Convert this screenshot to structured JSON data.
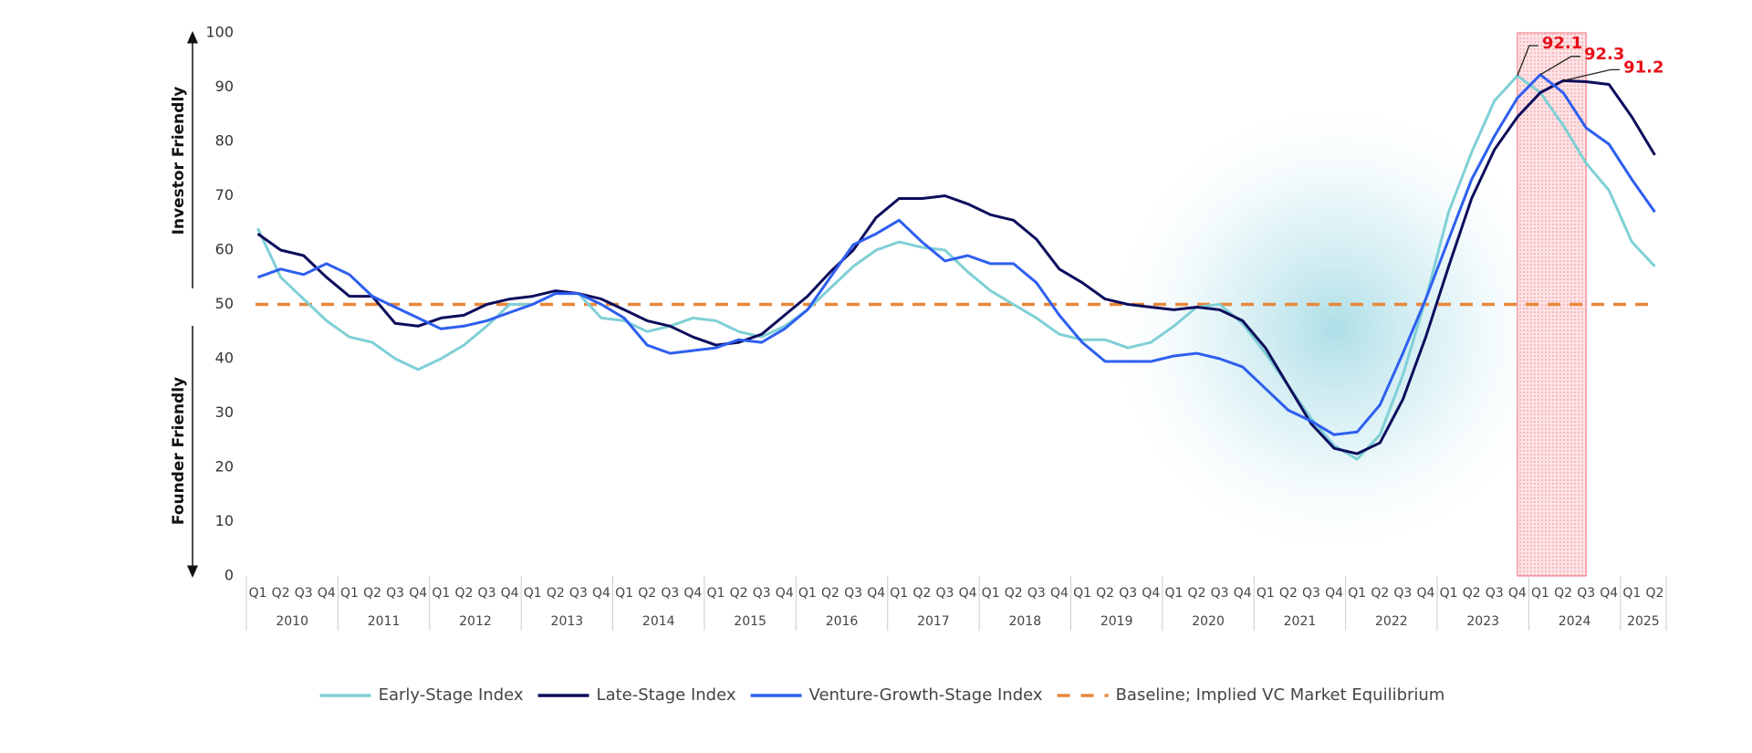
{
  "chart_data": {
    "type": "line",
    "y_label_upper": "Investor Friendly",
    "y_label_lower": "Founder  Friendly",
    "categories": [
      "Q1",
      "Q2",
      "Q3",
      "Q4",
      "Q1",
      "Q2",
      "Q3",
      "Q4",
      "Q1",
      "Q2",
      "Q3",
      "Q4",
      "Q1",
      "Q2",
      "Q3",
      "Q4",
      "Q1",
      "Q2",
      "Q3",
      "Q4",
      "Q1",
      "Q2",
      "Q3",
      "Q4",
      "Q1",
      "Q2",
      "Q3",
      "Q4",
      "Q1",
      "Q2",
      "Q3",
      "Q4",
      "Q1",
      "Q2",
      "Q3",
      "Q4",
      "Q1",
      "Q2",
      "Q3",
      "Q4",
      "Q1",
      "Q2",
      "Q3",
      "Q4",
      "Q1",
      "Q2",
      "Q3",
      "Q4",
      "Q1",
      "Q2",
      "Q3",
      "Q4",
      "Q1",
      "Q2",
      "Q3",
      "Q4",
      "Q1",
      "Q2",
      "Q3",
      "Q4",
      "Q1",
      "Q2"
    ],
    "years": [
      "2010",
      "2011",
      "2012",
      "2013",
      "2014",
      "2015",
      "2016",
      "2017",
      "2018",
      "2019",
      "2020",
      "2021",
      "2022",
      "2023",
      "2024",
      "2025"
    ],
    "series": [
      {
        "name": "Early-Stage Index",
        "color": "#7fd0d6",
        "values": [
          64,
          55,
          51,
          47,
          44,
          43,
          40,
          38,
          40,
          42.5,
          46,
          50,
          50,
          52,
          52,
          47.5,
          47,
          45,
          46,
          47.5,
          47,
          45,
          44,
          46,
          49,
          53,
          57,
          60,
          61.5,
          60.5,
          60,
          56,
          52.5,
          50,
          47.5,
          44.5,
          43.5,
          43.5,
          42,
          43,
          46,
          49.5,
          50,
          46.5,
          41,
          35,
          29,
          24,
          21.5,
          26,
          37,
          51,
          67,
          78,
          87.5,
          92.1,
          89,
          83,
          76,
          71,
          61.5,
          57
        ],
        "value_labels": [
          null,
          null,
          null,
          null,
          null,
          null,
          null,
          null,
          null,
          null,
          null,
          null,
          null,
          null,
          null,
          null,
          null,
          null,
          null,
          null,
          null,
          null,
          null,
          null,
          null,
          null,
          null,
          null,
          null,
          null,
          null,
          null,
          null,
          null,
          null,
          null,
          null,
          null,
          null,
          null,
          null,
          null,
          null,
          null,
          null,
          null,
          null,
          null,
          null,
          null,
          null,
          null,
          null,
          null,
          null,
          "92.1",
          null,
          null,
          null,
          null,
          null,
          null
        ]
      },
      {
        "name": "Late-Stage Index",
        "color": "#0d0d5c",
        "values": [
          63,
          60,
          59,
          55,
          51.5,
          51.5,
          46.5,
          46,
          47.5,
          48,
          50,
          51,
          51.5,
          52.5,
          52,
          51,
          49,
          47,
          46,
          44,
          42.5,
          43,
          44.5,
          48,
          51.5,
          56,
          60,
          66,
          69.5,
          69.5,
          70,
          68.5,
          66.5,
          65.5,
          62,
          56.5,
          54,
          51,
          50,
          49.5,
          49,
          49.5,
          49,
          47,
          42,
          35,
          28,
          23.5,
          22.5,
          24.5,
          32.5,
          44,
          57,
          69.5,
          78.5,
          84.5,
          89,
          91.2,
          91,
          90.5,
          84.5,
          77.5
        ],
        "value_labels": [
          null,
          null,
          null,
          null,
          null,
          null,
          null,
          null,
          null,
          null,
          null,
          null,
          null,
          null,
          null,
          null,
          null,
          null,
          null,
          null,
          null,
          null,
          null,
          null,
          null,
          null,
          null,
          null,
          null,
          null,
          null,
          null,
          null,
          null,
          null,
          null,
          null,
          null,
          null,
          null,
          null,
          null,
          null,
          null,
          null,
          null,
          null,
          null,
          null,
          null,
          null,
          null,
          null,
          null,
          null,
          null,
          null,
          "91.2",
          null,
          null,
          null,
          null
        ]
      },
      {
        "name": "Venture-Growth-Stage Index",
        "color": "#2e5ff0",
        "values": [
          55,
          56.5,
          55.5,
          57.5,
          55.5,
          51.5,
          49.5,
          47.5,
          45.5,
          46,
          47,
          48.5,
          50,
          52,
          52,
          50,
          47.5,
          42.5,
          41,
          41.5,
          42,
          43.5,
          43,
          45.5,
          49,
          55,
          61,
          63,
          65.5,
          61.5,
          58,
          59,
          57.5,
          57.5,
          54,
          48,
          43,
          39.5,
          39.5,
          39.5,
          40.5,
          41,
          40,
          38.5,
          34.5,
          30.5,
          28.5,
          26,
          26.5,
          31.5,
          41,
          51,
          62,
          73,
          81,
          88,
          92.3,
          89,
          82.5,
          79.5,
          73,
          67
        ],
        "value_labels": [
          null,
          null,
          null,
          null,
          null,
          null,
          null,
          null,
          null,
          null,
          null,
          null,
          null,
          null,
          null,
          null,
          null,
          null,
          null,
          null,
          null,
          null,
          null,
          null,
          null,
          null,
          null,
          null,
          null,
          null,
          null,
          null,
          null,
          null,
          null,
          null,
          null,
          null,
          null,
          null,
          null,
          null,
          null,
          null,
          null,
          null,
          null,
          null,
          null,
          null,
          null,
          null,
          null,
          null,
          null,
          null,
          "92.3",
          null,
          null,
          null,
          null,
          null
        ]
      }
    ],
    "baseline": {
      "name": "Baseline; Implied VC Market Equilibrium",
      "value": 50,
      "color": "#e8873a"
    },
    "highlight_categories": [
      55,
      58
    ],
    "value_label_color": "#e8101a",
    "ylim": [
      0,
      100
    ],
    "yticks": [
      0,
      10,
      20,
      30,
      40,
      50,
      60,
      70,
      80,
      90,
      100
    ],
    "grid": false
  }
}
